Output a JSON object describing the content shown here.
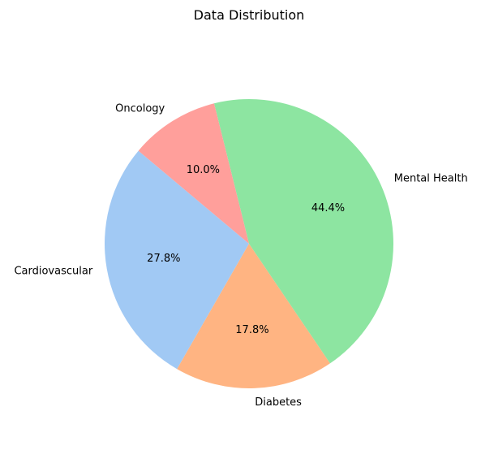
{
  "chart_data": {
    "type": "pie",
    "title": "Data Distribution",
    "start_angle_deg": 140,
    "direction": "counterclockwise",
    "slices": [
      {
        "label": "Cardiovascular",
        "value": 27.8,
        "pct_label": "27.8%",
        "color": "#a1c9f4"
      },
      {
        "label": "Diabetes",
        "value": 17.8,
        "pct_label": "17.8%",
        "color": "#ffb482"
      },
      {
        "label": "Mental Health",
        "value": 44.4,
        "pct_label": "44.4%",
        "color": "#8de5a1"
      },
      {
        "label": "Oncology",
        "value": 10.0,
        "pct_label": "10.0%",
        "color": "#ff9f9b"
      }
    ]
  }
}
